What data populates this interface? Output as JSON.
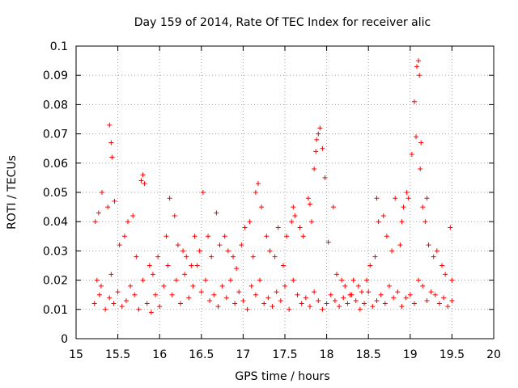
{
  "chart_data": {
    "type": "scatter",
    "title": "Day 159 of 2014, Rate Of TEC Index for receiver alic",
    "xlabel": "GPS time / hours",
    "ylabel": "ROTI / TECUs",
    "xlim": [
      15,
      20
    ],
    "ylim": [
      0,
      0.1
    ],
    "grid": true,
    "marker": "+",
    "color": "#ff0000",
    "x_ticks": [
      "15",
      "15.5",
      "16",
      "16.5",
      "17",
      "17.5",
      "18",
      "18.5",
      "19",
      "19.5",
      "20"
    ],
    "y_ticks": [
      "0",
      "0.01",
      "0.02",
      "0.03",
      "0.04",
      "0.05",
      "0.06",
      "0.07",
      "0.08",
      "0.09",
      "0.1"
    ],
    "series": [
      {
        "name": "ROTI",
        "x": [
          15.22,
          15.25,
          15.28,
          15.3,
          15.35,
          15.4,
          15.42,
          15.45,
          15.5,
          15.55,
          15.6,
          15.65,
          15.7,
          15.75,
          15.8,
          15.85,
          15.9,
          15.95,
          16.0,
          16.05,
          16.1,
          16.15,
          16.2,
          16.25,
          16.3,
          16.35,
          16.4,
          16.45,
          16.5,
          16.55,
          16.6,
          16.65,
          16.7,
          16.75,
          16.8,
          16.85,
          16.9,
          16.95,
          17.0,
          17.05,
          17.1,
          17.15,
          17.2,
          17.25,
          17.3,
          17.35,
          17.4,
          17.45,
          17.5,
          17.55,
          17.6,
          17.65,
          17.7,
          17.75,
          17.8,
          17.85,
          17.9,
          17.95,
          18.0,
          18.05,
          18.1,
          18.15,
          18.2,
          18.25,
          18.3,
          18.35,
          18.4,
          18.45,
          18.5,
          18.55,
          18.6,
          18.65,
          18.7,
          18.75,
          18.8,
          18.85,
          18.9,
          18.95,
          19.0,
          19.05,
          19.1,
          19.15,
          19.2,
          19.25,
          19.3,
          19.35,
          19.4,
          19.45,
          19.5,
          15.23,
          15.27,
          15.31,
          15.38,
          15.4,
          15.42,
          15.43,
          15.46,
          15.52,
          15.58,
          15.62,
          15.68,
          15.72,
          15.78,
          15.8,
          15.82,
          15.88,
          15.92,
          15.98,
          16.08,
          16.12,
          16.18,
          16.22,
          16.28,
          16.32,
          16.38,
          16.42,
          16.48,
          16.52,
          16.58,
          16.62,
          16.68,
          16.72,
          16.78,
          16.82,
          16.88,
          16.92,
          16.98,
          17.02,
          17.08,
          17.12,
          17.15,
          17.18,
          17.22,
          17.28,
          17.32,
          17.38,
          17.42,
          17.48,
          17.52,
          17.58,
          17.6,
          17.62,
          17.68,
          17.72,
          17.78,
          17.8,
          17.82,
          17.85,
          17.87,
          17.88,
          17.9,
          17.92,
          17.95,
          17.98,
          18.02,
          18.08,
          18.12,
          18.18,
          18.22,
          18.28,
          18.32,
          18.38,
          18.42,
          18.48,
          18.52,
          18.58,
          18.6,
          18.62,
          18.68,
          18.72,
          18.78,
          18.82,
          18.88,
          18.9,
          18.92,
          18.96,
          18.98,
          19.02,
          19.05,
          19.07,
          19.08,
          19.1,
          19.11,
          19.12,
          19.13,
          19.15,
          19.18,
          19.2,
          19.22,
          19.28,
          19.32,
          19.38,
          19.42,
          19.48,
          19.5
        ],
        "y": [
          0.012,
          0.02,
          0.015,
          0.018,
          0.01,
          0.014,
          0.022,
          0.012,
          0.016,
          0.011,
          0.013,
          0.018,
          0.015,
          0.01,
          0.02,
          0.012,
          0.009,
          0.015,
          0.011,
          0.018,
          0.025,
          0.015,
          0.02,
          0.012,
          0.022,
          0.014,
          0.018,
          0.025,
          0.016,
          0.02,
          0.013,
          0.015,
          0.011,
          0.018,
          0.014,
          0.02,
          0.012,
          0.016,
          0.013,
          0.01,
          0.018,
          0.015,
          0.02,
          0.012,
          0.014,
          0.011,
          0.016,
          0.013,
          0.018,
          0.01,
          0.02,
          0.015,
          0.012,
          0.014,
          0.011,
          0.016,
          0.013,
          0.01,
          0.012,
          0.015,
          0.013,
          0.011,
          0.014,
          0.012,
          0.015,
          0.013,
          0.01,
          0.012,
          0.016,
          0.011,
          0.013,
          0.015,
          0.012,
          0.018,
          0.014,
          0.016,
          0.011,
          0.014,
          0.015,
          0.012,
          0.02,
          0.018,
          0.013,
          0.016,
          0.015,
          0.012,
          0.014,
          0.011,
          0.013,
          0.04,
          0.043,
          0.05,
          0.045,
          0.073,
          0.067,
          0.062,
          0.047,
          0.032,
          0.035,
          0.04,
          0.042,
          0.028,
          0.054,
          0.056,
          0.053,
          0.025,
          0.022,
          0.028,
          0.035,
          0.048,
          0.042,
          0.032,
          0.03,
          0.028,
          0.025,
          0.035,
          0.03,
          0.05,
          0.035,
          0.028,
          0.043,
          0.032,
          0.035,
          0.03,
          0.028,
          0.024,
          0.032,
          0.038,
          0.04,
          0.028,
          0.05,
          0.053,
          0.045,
          0.035,
          0.03,
          0.028,
          0.038,
          0.025,
          0.035,
          0.04,
          0.045,
          0.042,
          0.038,
          0.035,
          0.048,
          0.046,
          0.04,
          0.058,
          0.064,
          0.068,
          0.07,
          0.072,
          0.065,
          0.055,
          0.033,
          0.045,
          0.022,
          0.02,
          0.018,
          0.015,
          0.02,
          0.018,
          0.016,
          0.02,
          0.025,
          0.028,
          0.048,
          0.04,
          0.042,
          0.035,
          0.03,
          0.048,
          0.032,
          0.04,
          0.045,
          0.05,
          0.048,
          0.063,
          0.081,
          0.069,
          0.093,
          0.095,
          0.09,
          0.058,
          0.067,
          0.045,
          0.04,
          0.048,
          0.032,
          0.028,
          0.03,
          0.025,
          0.022,
          0.038,
          0.02
        ]
      }
    ]
  }
}
